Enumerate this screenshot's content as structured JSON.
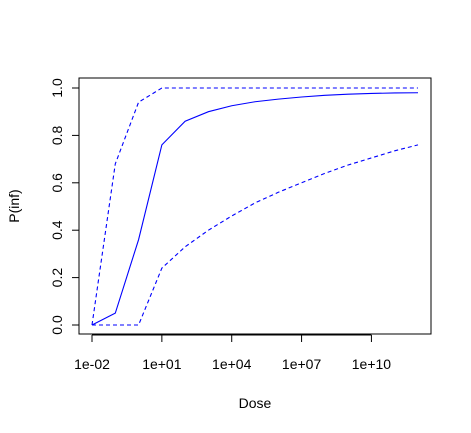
{
  "chart_data": {
    "type": "line",
    "title": "",
    "xlabel": "Dose",
    "ylabel": "P(inf)",
    "x_scale": "log10",
    "xlim": [
      0.01,
      1000000000000.0
    ],
    "ylim": [
      0,
      1
    ],
    "x_ticks": [
      {
        "value": 0.01,
        "label": "1e-02"
      },
      {
        "value": 10,
        "label": "1e+01"
      },
      {
        "value": 10000,
        "label": "1e+04"
      },
      {
        "value": 10000000,
        "label": "1e+07"
      },
      {
        "value": 10000000000,
        "label": "1e+10"
      }
    ],
    "y_ticks": [
      {
        "value": 0,
        "label": "0.0"
      },
      {
        "value": 0.2,
        "label": "0.2"
      },
      {
        "value": 0.4,
        "label": "0.4"
      },
      {
        "value": 0.6,
        "label": "0.6"
      },
      {
        "value": 0.8,
        "label": "0.8"
      },
      {
        "value": 1,
        "label": "1.0"
      }
    ],
    "grid": false,
    "legend": false,
    "series": [
      {
        "style": "solid",
        "color": "#0000ff",
        "points": [
          [
            0.01,
            0.0
          ],
          [
            0.1,
            0.05
          ],
          [
            1,
            0.36
          ],
          [
            10,
            0.76
          ],
          [
            100,
            0.86
          ],
          [
            1000,
            0.9
          ],
          [
            10000,
            0.925
          ],
          [
            100000,
            0.942
          ],
          [
            1000000,
            0.953
          ],
          [
            10000000,
            0.962
          ],
          [
            100000000,
            0.969
          ],
          [
            1000000000,
            0.974
          ],
          [
            10000000000,
            0.977
          ],
          [
            100000000000,
            0.979
          ],
          [
            1000000000000,
            0.98
          ]
        ]
      },
      {
        "style": "dashed",
        "color": "#0000ff",
        "points": [
          [
            0.01,
            0.0
          ],
          [
            0.1,
            0.68
          ],
          [
            1,
            0.94
          ],
          [
            10,
            1.0
          ],
          [
            100,
            1.0
          ],
          [
            1000,
            1.0
          ],
          [
            10000,
            1.0
          ],
          [
            100000,
            1.0
          ],
          [
            1000000,
            1.0
          ],
          [
            10000000,
            1.0
          ],
          [
            100000000,
            1.0
          ],
          [
            1000000000,
            1.0
          ],
          [
            10000000000,
            1.0
          ],
          [
            100000000000,
            1.0
          ],
          [
            1000000000000,
            1.0
          ]
        ]
      },
      {
        "style": "dashed",
        "color": "#0000ff",
        "points": [
          [
            0.01,
            0.0
          ],
          [
            0.1,
            0.0
          ],
          [
            1,
            0.0
          ],
          [
            10,
            0.24
          ],
          [
            100,
            0.33
          ],
          [
            1000,
            0.4
          ],
          [
            10000,
            0.46
          ],
          [
            100000,
            0.515
          ],
          [
            1000000,
            0.56
          ],
          [
            10000000,
            0.6
          ],
          [
            100000000,
            0.64
          ],
          [
            1000000000,
            0.675
          ],
          [
            10000000000,
            0.705
          ],
          [
            100000000000,
            0.735
          ],
          [
            1000000000000,
            0.76
          ]
        ]
      }
    ]
  }
}
